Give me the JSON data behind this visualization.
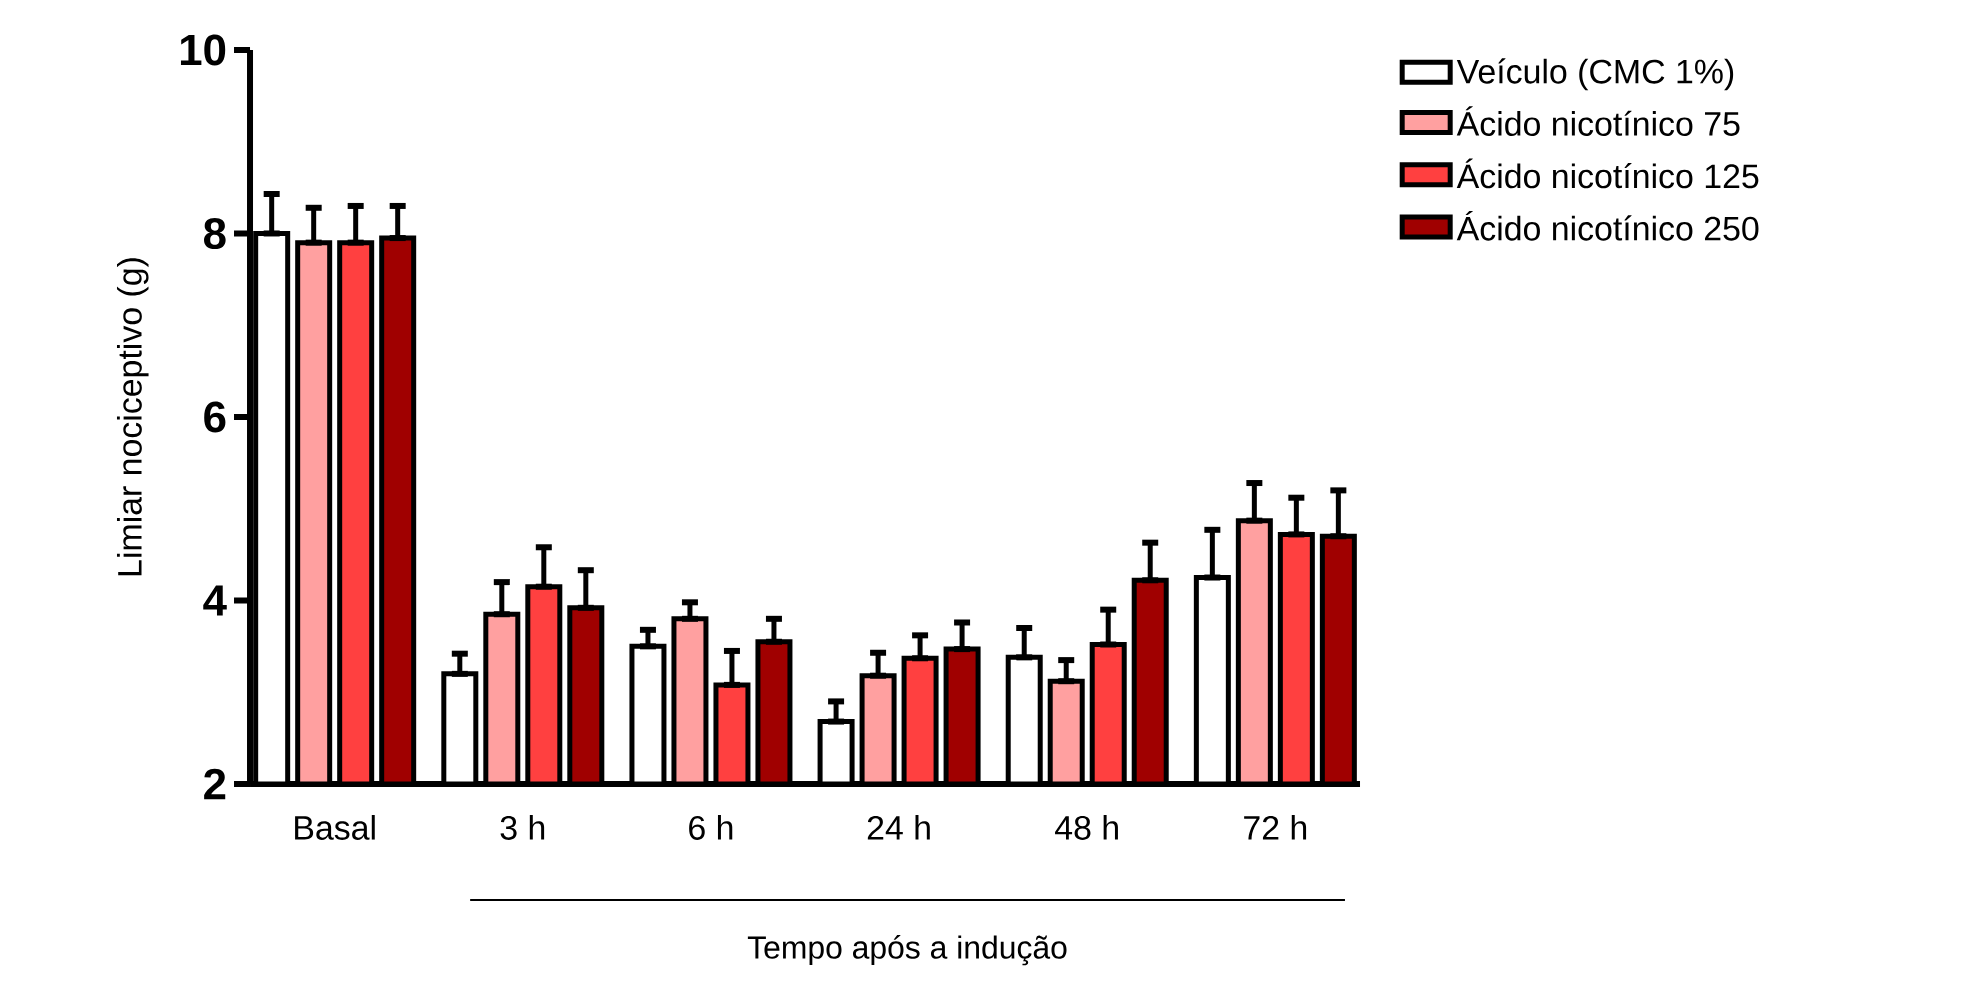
{
  "chart_data": {
    "type": "bar",
    "ylabel": "Limiar nociceptivo (g)",
    "xlabel": "Tempo após a indução",
    "categories": [
      "Basal",
      "3 h",
      "6 h",
      "24 h",
      "48 h",
      "72 h"
    ],
    "series": [
      {
        "name": "Veículo (CMC 1%)",
        "color": "#ffffff",
        "values": [
          8.0,
          3.2,
          3.5,
          2.68,
          3.38,
          4.25
        ],
        "errors": [
          [
            8.0,
            8.43
          ],
          [
            3.2,
            3.42
          ],
          [
            3.5,
            3.68
          ],
          [
            2.68,
            2.9
          ],
          [
            3.38,
            3.7
          ],
          [
            4.25,
            4.77
          ]
        ]
      },
      {
        "name": "Ácido nicotínico 75",
        "color": "#ffa0a0",
        "values": [
          7.9,
          3.85,
          3.8,
          3.18,
          3.12,
          4.87
        ],
        "errors": [
          [
            7.9,
            8.28
          ],
          [
            3.85,
            4.2
          ],
          [
            3.8,
            3.98
          ],
          [
            3.18,
            3.43
          ],
          [
            3.12,
            3.35
          ],
          [
            4.87,
            5.28
          ]
        ]
      },
      {
        "name": "Ácido nicotínico 125",
        "color": "#ff4040",
        "values": [
          7.9,
          4.15,
          3.08,
          3.37,
          3.52,
          4.72
        ],
        "errors": [
          [
            7.9,
            8.3
          ],
          [
            4.15,
            4.58
          ],
          [
            3.08,
            3.45
          ],
          [
            3.37,
            3.62
          ],
          [
            3.52,
            3.9
          ],
          [
            4.72,
            5.12
          ]
        ]
      },
      {
        "name": "Ácido nicotínico 250",
        "color": "#a00000",
        "values": [
          7.95,
          3.92,
          3.55,
          3.47,
          4.22,
          4.7
        ],
        "errors": [
          [
            7.95,
            8.3
          ],
          [
            3.92,
            4.33
          ],
          [
            3.55,
            3.8
          ],
          [
            3.47,
            3.76
          ],
          [
            4.22,
            4.63
          ],
          [
            4.7,
            5.2
          ]
        ]
      }
    ],
    "ylim": [
      2,
      10
    ],
    "yticks": [
      2,
      4,
      6,
      8,
      10
    ],
    "grid": false,
    "legend": "top right"
  }
}
